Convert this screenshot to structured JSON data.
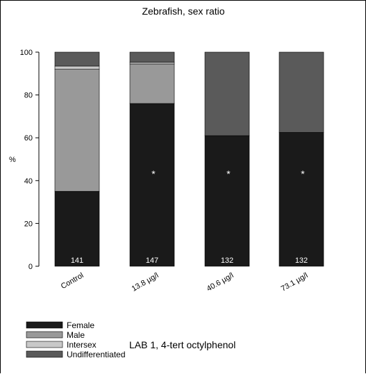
{
  "chart_data": {
    "type": "bar",
    "stacked": true,
    "title": "Zebrafish, sex ratio",
    "ylabel": "%",
    "xlabel": "",
    "ylim": [
      0,
      100
    ],
    "yticks": [
      0,
      20,
      40,
      60,
      80,
      100
    ],
    "categories": [
      "Control",
      "13.8 µg/l",
      "40.6 µg/l",
      "73.1 µg/l"
    ],
    "series": [
      {
        "name": "Female",
        "values": [
          35,
          76,
          61,
          62.5
        ],
        "color": "#1a1a1a"
      },
      {
        "name": "Male",
        "values": [
          57,
          18.5,
          0,
          0
        ],
        "color": "#999999"
      },
      {
        "name": "Intersex",
        "values": [
          1.5,
          0.8,
          0,
          0
        ],
        "color": "#c8c8c8"
      },
      {
        "name": "Undifferentiated",
        "values": [
          6.5,
          4.7,
          39,
          37.5
        ],
        "color": "#5a5a5a"
      }
    ],
    "counts": [
      "141",
      "147",
      "132",
      "132"
    ],
    "significance": [
      "",
      "*",
      "*",
      "*"
    ],
    "grid": false,
    "legend_position": "bottom-left",
    "annotation": "LAB 1, 4-tert octylphenol"
  }
}
